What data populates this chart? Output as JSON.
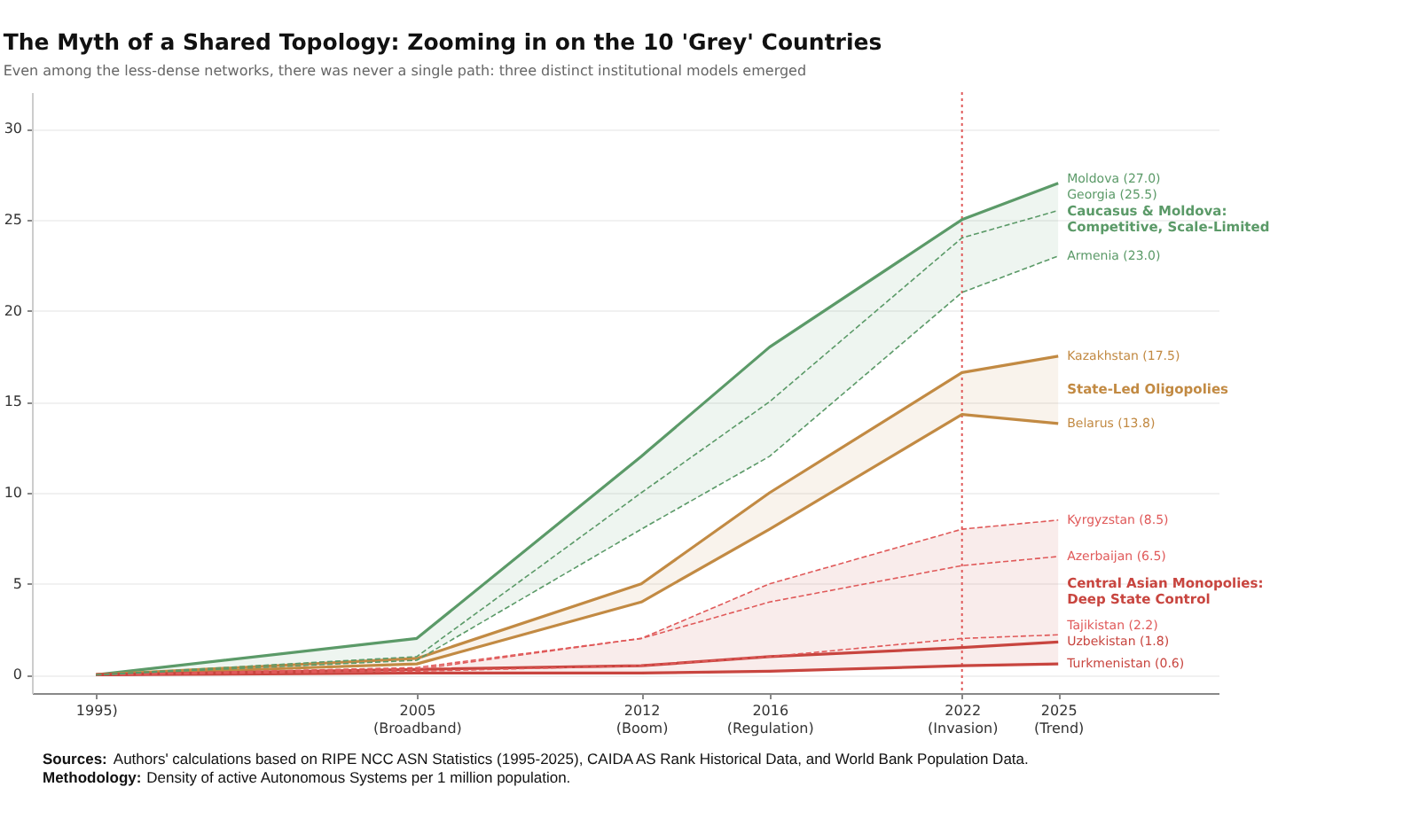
{
  "chart_data": {
    "type": "line",
    "title": "The Myth of a Shared Topology: Zooming in on the 10 'Grey' Countries",
    "subtitle": "Even among the less-dense networks, there was never a single path: three distinct institutional models emerged",
    "x": [
      1995,
      2005,
      2012,
      2016,
      2022,
      2025
    ],
    "xlim": [
      1993,
      2030
    ],
    "xticks": [
      {
        "value": 1995,
        "label": "1995)"
      },
      {
        "value": 2005,
        "label": "2005\n(Broadband)"
      },
      {
        "value": 2012,
        "label": "2012\n(Boom)"
      },
      {
        "value": 2016,
        "label": "2016\n(Regulation)"
      },
      {
        "value": 2022,
        "label": "2022\n(Invasion)"
      },
      {
        "value": 2025,
        "label": "2025\n(Trend)"
      }
    ],
    "ylim": [
      -1,
      32
    ],
    "yticks": [
      0,
      5,
      10,
      15,
      20,
      25,
      30
    ],
    "grid": "y",
    "series": [
      {
        "name": "Moldova",
        "color": "#5b9a68",
        "line_style": "solid",
        "values": [
          0,
          2,
          12,
          18,
          25,
          27.0
        ],
        "value_labels": [
          null,
          null,
          null,
          null,
          null,
          "(27.0)"
        ]
      },
      {
        "name": "Georgia",
        "color": "#5b9a68",
        "line_style": "dashed",
        "values": [
          0,
          1.0,
          10,
          15,
          24,
          25.5
        ],
        "value_labels": [
          null,
          null,
          null,
          null,
          null,
          "(25.5)"
        ],
        "lower": [
          0,
          0.8,
          8,
          12,
          21,
          23.0
        ],
        "upper": [
          0,
          2,
          12,
          18,
          25,
          27.0
        ]
      },
      {
        "name": "Armenia",
        "color": "#5b9a68",
        "line_style": "dashed",
        "values": [
          0,
          0.8,
          8,
          12,
          21,
          23.0
        ],
        "value_labels": [
          null,
          null,
          null,
          null,
          null,
          "(23.0)"
        ]
      },
      {
        "name": "Kazakhstan",
        "color": "#c28a43",
        "line_style": "solid",
        "values": [
          0,
          0.9,
          5,
          10,
          16.6,
          17.5
        ],
        "value_labels": [
          null,
          null,
          null,
          null,
          null,
          "(17.5)"
        ],
        "lower": [
          0,
          0.6,
          4,
          8,
          14.3,
          13.8
        ],
        "upper": [
          0,
          0.9,
          5,
          10,
          16.6,
          17.5
        ]
      },
      {
        "name": "Belarus",
        "color": "#c28a43",
        "line_style": "solid",
        "values": [
          0,
          0.6,
          4,
          8,
          14.3,
          13.8
        ],
        "value_labels": [
          null,
          null,
          null,
          null,
          null,
          "(13.8)"
        ]
      },
      {
        "name": "Kyrgyzstan",
        "color": "#e05a5a",
        "line_style": "dashed",
        "values": [
          0,
          0.4,
          2,
          5,
          8,
          8.5
        ],
        "value_labels": [
          null,
          null,
          null,
          null,
          null,
          "(8.5)"
        ]
      },
      {
        "name": "Azerbaijan",
        "color": "#e05a5a",
        "line_style": "dashed",
        "values": [
          0,
          0.3,
          2,
          4,
          6,
          6.5
        ],
        "value_labels": [
          null,
          null,
          null,
          null,
          null,
          "(6.5)"
        ]
      },
      {
        "name": "Tajikistan",
        "color": "#e05a5a",
        "line_style": "dashed",
        "values": [
          0,
          0.2,
          0.5,
          1.0,
          2.0,
          2.2
        ],
        "value_labels": [
          null,
          null,
          null,
          null,
          null,
          "(2.2)"
        ]
      },
      {
        "name": "Uzbekistan",
        "color": "#c8453f",
        "line_style": "solid",
        "values": [
          0,
          0.3,
          0.5,
          1.0,
          1.5,
          1.8
        ],
        "value_labels": [
          null,
          null,
          null,
          null,
          null,
          "(1.8)"
        ],
        "lower": [
          0,
          0.1,
          0.1,
          0.2,
          0.5,
          0.6
        ],
        "upper": [
          0,
          0.4,
          2,
          5,
          8,
          8.5
        ]
      },
      {
        "name": "Turkmenistan",
        "color": "#c8453f",
        "line_style": "solid",
        "values": [
          0,
          0.1,
          0.1,
          0.2,
          0.5,
          0.6
        ],
        "value_labels": [
          null,
          null,
          null,
          null,
          null,
          "(0.6)"
        ]
      }
    ],
    "ref_lines": [
      {
        "axis": "x",
        "value": 2022,
        "color": "#e05a5a",
        "line_style": "dotted"
      }
    ],
    "annotations": [
      "Caucasus & Moldova:\nCompetitive, Scale-Limited",
      "State-Led Oligopolies",
      "Central Asian Monopolies:\nDeep State Control",
      "Sources: Authors' calculations based on RIPE NCC ASN Statistics (1995-2025), CAIDA AS Rank Historical Data, and World Bank Population Data.",
      "Methodology: Density of active Autonomous Systems per 1 million population."
    ]
  }
}
